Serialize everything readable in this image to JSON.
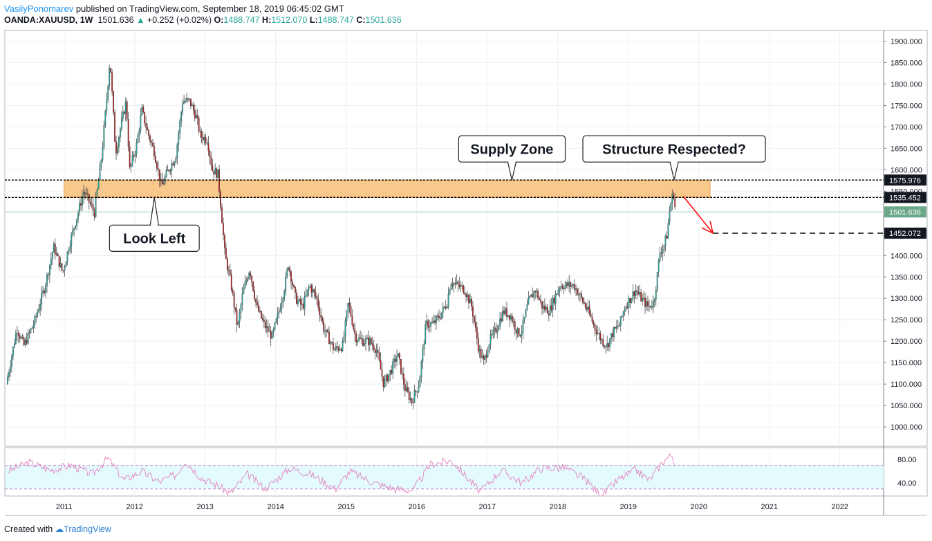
{
  "header": {
    "author": "VasilyPonomarev",
    "published_text": "published on TradingView.com, September 18, 2019 06:45:02 GMT",
    "symbol": "OANDA:XAUUSD, 1W",
    "last": "1501.636",
    "change": "+0.252 (+0.02%)",
    "o_label": "O:",
    "o_value": "1488.747",
    "h_label": "H:",
    "h_value": "1512.070",
    "l_label": "L:",
    "l_value": "1488.747",
    "c_label": "C:",
    "c_value": "1501.636"
  },
  "footer": {
    "created_with": "Created with",
    "brand": "TradingView"
  },
  "colors": {
    "up": "#26a69a",
    "down": "#b02020",
    "zone": "#f9c98c",
    "rsi": "#e38cc8",
    "rsi_band": "#e3fbfd",
    "label_bg": "#131722",
    "last_bg": "#6aa889",
    "arrow": "#ff0000"
  },
  "chart_data": [
    {
      "type": "candlestick",
      "title": "",
      "xlabel": "",
      "ylabel": "",
      "x_ticks": [
        "2011",
        "2012",
        "2013",
        "2014",
        "2015",
        "2016",
        "2017",
        "2018",
        "2019",
        "2020",
        "2021",
        "2022"
      ],
      "y_ticks": [
        "1900.000",
        "1850.000",
        "1800.000",
        "1750.000",
        "1700.000",
        "1650.000",
        "1600.000",
        "1550.000",
        "1400.000",
        "1350.000",
        "1300.000",
        "1250.000",
        "1200.000",
        "1150.000",
        "1100.000",
        "1050.000",
        "1000.000"
      ],
      "ylim": [
        955,
        1925
      ],
      "xlim": [
        2010.16,
        2022.62
      ],
      "grid": true,
      "price_path": [
        [
          2010.2,
          1100
        ],
        [
          2010.35,
          1230
        ],
        [
          2010.45,
          1190
        ],
        [
          2010.6,
          1245
        ],
        [
          2010.75,
          1330
        ],
        [
          2010.87,
          1420
        ],
        [
          2011.0,
          1360
        ],
        [
          2011.1,
          1430
        ],
        [
          2011.3,
          1550
        ],
        [
          2011.45,
          1500
        ],
        [
          2011.55,
          1630
        ],
        [
          2011.62,
          1760
        ],
        [
          2011.67,
          1860
        ],
        [
          2011.75,
          1640
        ],
        [
          2011.82,
          1700
        ],
        [
          2011.9,
          1760
        ],
        [
          2011.95,
          1600
        ],
        [
          2012.05,
          1660
        ],
        [
          2012.12,
          1740
        ],
        [
          2012.2,
          1690
        ],
        [
          2012.3,
          1640
        ],
        [
          2012.4,
          1560
        ],
        [
          2012.5,
          1600
        ],
        [
          2012.6,
          1630
        ],
        [
          2012.7,
          1760
        ],
        [
          2012.8,
          1760
        ],
        [
          2012.9,
          1720
        ],
        [
          2012.95,
          1680
        ],
        [
          2013.05,
          1670
        ],
        [
          2013.12,
          1600
        ],
        [
          2013.2,
          1590
        ],
        [
          2013.25,
          1500
        ],
        [
          2013.3,
          1400
        ],
        [
          2013.38,
          1340
        ],
        [
          2013.48,
          1230
        ],
        [
          2013.55,
          1310
        ],
        [
          2013.65,
          1370
        ],
        [
          2013.75,
          1280
        ],
        [
          2013.85,
          1240
        ],
        [
          2013.97,
          1210
        ],
        [
          2014.05,
          1260
        ],
        [
          2014.15,
          1330
        ],
        [
          2014.2,
          1380
        ],
        [
          2014.3,
          1300
        ],
        [
          2014.4,
          1280
        ],
        [
          2014.5,
          1330
        ],
        [
          2014.6,
          1300
        ],
        [
          2014.7,
          1230
        ],
        [
          2014.85,
          1180
        ],
        [
          2014.97,
          1190
        ],
        [
          2015.05,
          1290
        ],
        [
          2015.15,
          1210
        ],
        [
          2015.25,
          1200
        ],
        [
          2015.35,
          1200
        ],
        [
          2015.45,
          1180
        ],
        [
          2015.55,
          1100
        ],
        [
          2015.65,
          1130
        ],
        [
          2015.75,
          1170
        ],
        [
          2015.85,
          1090
        ],
        [
          2015.95,
          1060
        ],
        [
          2016.05,
          1100
        ],
        [
          2016.15,
          1240
        ],
        [
          2016.25,
          1240
        ],
        [
          2016.35,
          1260
        ],
        [
          2016.45,
          1290
        ],
        [
          2016.5,
          1340
        ],
        [
          2016.6,
          1330
        ],
        [
          2016.7,
          1320
        ],
        [
          2016.8,
          1280
        ],
        [
          2016.9,
          1180
        ],
        [
          2016.97,
          1150
        ],
        [
          2017.05,
          1200
        ],
        [
          2017.15,
          1230
        ],
        [
          2017.25,
          1270
        ],
        [
          2017.35,
          1260
        ],
        [
          2017.45,
          1220
        ],
        [
          2017.5,
          1220
        ],
        [
          2017.6,
          1290
        ],
        [
          2017.7,
          1320
        ],
        [
          2017.8,
          1280
        ],
        [
          2017.9,
          1270
        ],
        [
          2017.97,
          1300
        ],
        [
          2018.05,
          1330
        ],
        [
          2018.15,
          1330
        ],
        [
          2018.25,
          1330
        ],
        [
          2018.35,
          1300
        ],
        [
          2018.45,
          1270
        ],
        [
          2018.55,
          1230
        ],
        [
          2018.65,
          1200
        ],
        [
          2018.72,
          1190
        ],
        [
          2018.8,
          1220
        ],
        [
          2018.9,
          1240
        ],
        [
          2018.97,
          1280
        ],
        [
          2019.05,
          1300
        ],
        [
          2019.12,
          1320
        ],
        [
          2019.2,
          1300
        ],
        [
          2019.3,
          1280
        ],
        [
          2019.38,
          1290
        ],
        [
          2019.42,
          1340
        ],
        [
          2019.47,
          1410
        ],
        [
          2019.52,
          1420
        ],
        [
          2019.57,
          1450
        ],
        [
          2019.6,
          1500
        ],
        [
          2019.63,
          1530
        ],
        [
          2019.66,
          1545
        ],
        [
          2019.69,
          1500
        ]
      ],
      "horizontal_levels": [
        {
          "label": "1575.976",
          "value": 1575.976,
          "style": "dotted"
        },
        {
          "label": "1535.452",
          "value": 1535.452,
          "style": "dotted"
        },
        {
          "label": "1452.072",
          "value": 1452.072,
          "style": "dashed"
        },
        {
          "label": "1501.636",
          "value": 1501.636,
          "style": "last"
        }
      ],
      "zone": {
        "from_x": 2011.0,
        "to_x": 2020.16,
        "low": 1535.452,
        "high": 1575.976
      },
      "annotations": [
        {
          "text": "Supply Zone",
          "x": 2017.35,
          "y": 1575.976
        },
        {
          "text": "Structure Respected?",
          "x": 2019.65,
          "y": 1575.976
        },
        {
          "text": "Look Left",
          "x": 2012.28,
          "y": 1535.452
        }
      ],
      "projection": {
        "from_x": 2019.78,
        "from_y": 1538,
        "to_x": 2020.2,
        "to_y": 1452.072
      }
    },
    {
      "type": "line",
      "title": "",
      "y_ticks": [
        "80.00",
        "40.00"
      ],
      "ylim": [
        18,
        100
      ],
      "bands": [
        30,
        70
      ],
      "rsi_path": [
        [
          2010.2,
          60
        ],
        [
          2010.5,
          75
        ],
        [
          2010.8,
          62
        ],
        [
          2011.1,
          70
        ],
        [
          2011.4,
          55
        ],
        [
          2011.62,
          82
        ],
        [
          2011.85,
          45
        ],
        [
          2012.1,
          60
        ],
        [
          2012.35,
          42
        ],
        [
          2012.6,
          55
        ],
        [
          2012.72,
          78
        ],
        [
          2012.95,
          48
        ],
        [
          2013.2,
          35
        ],
        [
          2013.35,
          22
        ],
        [
          2013.6,
          55
        ],
        [
          2013.85,
          30
        ],
        [
          2014.2,
          65
        ],
        [
          2014.5,
          55
        ],
        [
          2014.85,
          30
        ],
        [
          2015.05,
          60
        ],
        [
          2015.4,
          40
        ],
        [
          2015.7,
          30
        ],
        [
          2015.95,
          28
        ],
        [
          2016.2,
          72
        ],
        [
          2016.5,
          78
        ],
        [
          2016.9,
          25
        ],
        [
          2017.2,
          62
        ],
        [
          2017.5,
          40
        ],
        [
          2017.75,
          65
        ],
        [
          2018.1,
          66
        ],
        [
          2018.4,
          45
        ],
        [
          2018.62,
          18
        ],
        [
          2018.85,
          45
        ],
        [
          2019.1,
          62
        ],
        [
          2019.3,
          45
        ],
        [
          2019.5,
          78
        ],
        [
          2019.62,
          88
        ],
        [
          2019.69,
          63
        ]
      ]
    }
  ]
}
